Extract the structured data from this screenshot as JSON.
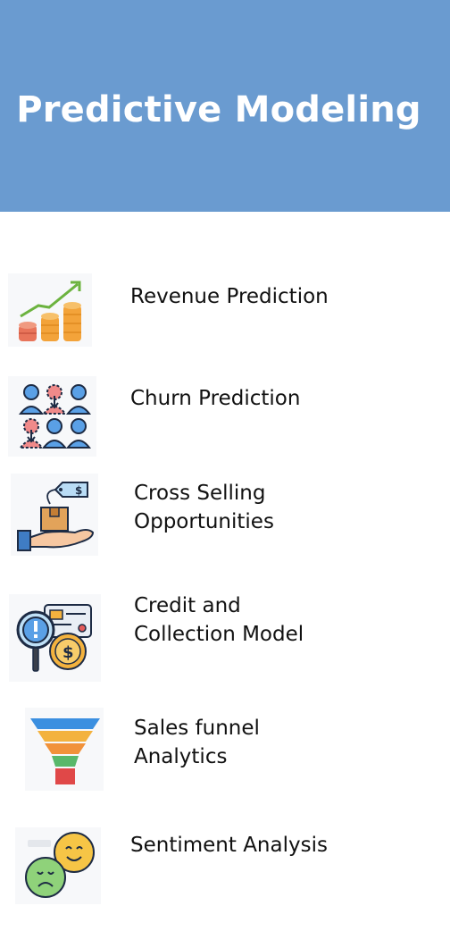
{
  "header": {
    "title": "Predictive Modeling",
    "color": "#6a9bd0"
  },
  "items": [
    {
      "icon": "revenue-chart-icon",
      "line1": "Revenue Prediction",
      "line2": ""
    },
    {
      "icon": "churn-users-icon",
      "line1": "Churn Prediction",
      "line2": ""
    },
    {
      "icon": "cross-sell-hand-icon",
      "line1": "Cross Selling",
      "line2": "Opportunities"
    },
    {
      "icon": "credit-collection-icon",
      "line1": "Credit and",
      "line2": "Collection Model"
    },
    {
      "icon": "sales-funnel-icon",
      "line1": "Sales funnel",
      "line2": "Analytics"
    },
    {
      "icon": "sentiment-faces-icon",
      "line1": "Sentiment Analysis",
      "line2": ""
    }
  ]
}
